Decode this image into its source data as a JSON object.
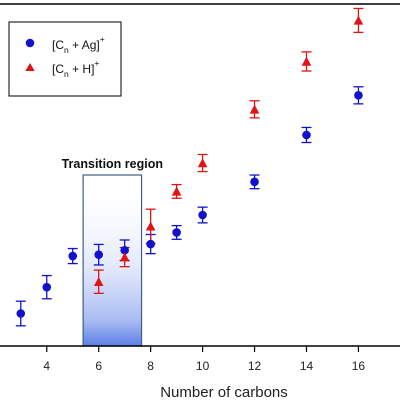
{
  "chart_data": {
    "type": "scatter",
    "xlabel": "Number of carbons",
    "ylabel": "",
    "xlim": [
      2.2,
      17.6
    ],
    "ylim": [
      0,
      1
    ],
    "x_ticks": [
      4,
      6,
      8,
      10,
      12,
      14,
      16
    ],
    "legend_position": "top-left",
    "grid": false,
    "annotation": {
      "label": "Transition region",
      "x_range": [
        5.4,
        7.65
      ]
    },
    "series": [
      {
        "name_main": "[C",
        "name_sub": "n",
        "name_rest": " + Ag]",
        "name_sup": "+",
        "marker": "circle",
        "color": "#1212cc",
        "points": [
          {
            "x": 3,
            "y": 0.095,
            "err": 0.036
          },
          {
            "x": 4,
            "y": 0.172,
            "err": 0.034
          },
          {
            "x": 5,
            "y": 0.263,
            "err": 0.022
          },
          {
            "x": 6,
            "y": 0.267,
            "err": 0.03
          },
          {
            "x": 7,
            "y": 0.28,
            "err": 0.03
          },
          {
            "x": 8,
            "y": 0.298,
            "err": 0.028
          },
          {
            "x": 9,
            "y": 0.332,
            "err": 0.02
          },
          {
            "x": 10,
            "y": 0.383,
            "err": 0.023
          },
          {
            "x": 12,
            "y": 0.48,
            "err": 0.02
          },
          {
            "x": 14,
            "y": 0.617,
            "err": 0.022
          },
          {
            "x": 16,
            "y": 0.733,
            "err": 0.025
          }
        ]
      },
      {
        "name_main": "[C",
        "name_sub": "n",
        "name_rest": " + H]",
        "name_sup": "+",
        "marker": "triangle",
        "color": "#e01414",
        "points": [
          {
            "x": 6,
            "y": 0.188,
            "err": 0.034
          },
          {
            "x": 7,
            "y": 0.26,
            "err": 0.028
          },
          {
            "x": 8,
            "y": 0.35,
            "err": 0.05
          },
          {
            "x": 9,
            "y": 0.452,
            "err": 0.02
          },
          {
            "x": 10,
            "y": 0.535,
            "err": 0.025
          },
          {
            "x": 12,
            "y": 0.692,
            "err": 0.025
          },
          {
            "x": 14,
            "y": 0.832,
            "err": 0.028
          },
          {
            "x": 16,
            "y": 0.952,
            "err": 0.035
          }
        ]
      }
    ]
  }
}
